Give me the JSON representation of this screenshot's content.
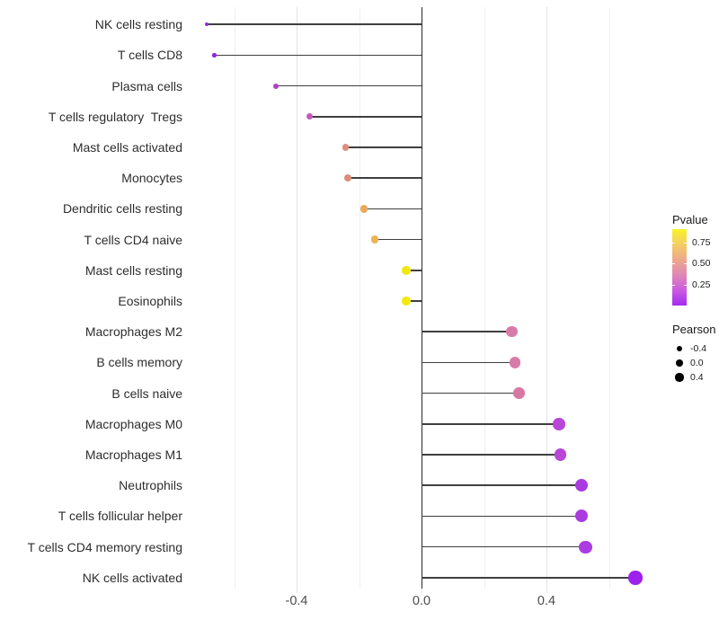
{
  "chart_data": {
    "type": "lollipop",
    "orientation": "horizontal",
    "title": "",
    "xlabel": "",
    "ylabel": "",
    "x_axis": {
      "range": [
        -0.757,
        0.757
      ],
      "major_ticks": [
        {
          "value": -0.4,
          "label": "-0.4"
        },
        {
          "value": 0.0,
          "label": "0.0"
        },
        {
          "value": 0.4,
          "label": "0.4"
        }
      ],
      "minor_gridlines": [
        -0.6,
        -0.2,
        0.2,
        0.6
      ],
      "zero_reference_line": 0.0
    },
    "grid": "vertical-only",
    "legend_position": "right",
    "points": [
      {
        "label": "NK cells resting",
        "pearson": -0.688,
        "color": "#9129DF"
      },
      {
        "label": "T cells CD8",
        "pearson": -0.663,
        "color": "#8F28DD"
      },
      {
        "label": "Plasma cells",
        "pearson": -0.465,
        "color": "#B13FC8"
      },
      {
        "label": "T cells regulatory  Tregs",
        "pearson": -0.358,
        "color": "#C459BC"
      },
      {
        "label": "Mast cells activated",
        "pearson": -0.243,
        "color": "#DD8E7C"
      },
      {
        "label": "Monocytes",
        "pearson": -0.235,
        "color": "#DC8C79"
      },
      {
        "label": "Dendritic cells resting",
        "pearson": -0.184,
        "color": "#E8A95E"
      },
      {
        "label": "T cells CD4 naive",
        "pearson": -0.15,
        "color": "#ECB351"
      },
      {
        "label": "Mast cells resting",
        "pearson": -0.049,
        "color": "#F2E90C"
      },
      {
        "label": "Eosinophils",
        "pearson": -0.049,
        "color": "#F2E90C"
      },
      {
        "label": "Macrophages M2",
        "pearson": 0.289,
        "color": "#D97BA8"
      },
      {
        "label": "B cells memory",
        "pearson": 0.299,
        "color": "#D97BA8"
      },
      {
        "label": "B cells naive",
        "pearson": 0.312,
        "color": "#D877A4"
      },
      {
        "label": "Macrophages M0",
        "pearson": 0.44,
        "color": "#B846D7"
      },
      {
        "label": "Macrophages M1",
        "pearson": 0.445,
        "color": "#B846D7"
      },
      {
        "label": "Neutrophils",
        "pearson": 0.512,
        "color": "#A93BE0"
      },
      {
        "label": "T cells follicular helper",
        "pearson": 0.512,
        "color": "#A93BE0"
      },
      {
        "label": "T cells CD4 memory resting",
        "pearson": 0.525,
        "color": "#AA3CE1"
      },
      {
        "label": "NK cells activated",
        "pearson": 0.685,
        "color": "#9D20EC"
      }
    ]
  },
  "legends": {
    "pvalue": {
      "title": "Pvalue",
      "gradient_top_to_bottom": [
        "#F8F228",
        "#F5CE63",
        "#EDA88C",
        "#E087B4",
        "#C95BE0",
        "#A42AF2"
      ],
      "ticks": [
        {
          "label": "0.75",
          "frac_from_top": 0.176
        },
        {
          "label": "0.50",
          "frac_from_top": 0.447
        },
        {
          "label": "0.25",
          "frac_from_top": 0.729
        }
      ]
    },
    "pearson": {
      "title": "Pearson",
      "items": [
        {
          "label": "-0.4",
          "radius": 3.2
        },
        {
          "label": "0.0",
          "radius": 3.9
        },
        {
          "label": "0.4",
          "radius": 4.6
        }
      ]
    }
  },
  "colors": {
    "background": "#FFFFFF",
    "stem": "#3F3F3F",
    "zero_line": "#2B2B2B",
    "grid_major": "#E3E3E3",
    "grid_minor": "#EFEFEF",
    "x_axis_text": "#4D4D4D",
    "y_axis_text": "#2E2E2E"
  }
}
